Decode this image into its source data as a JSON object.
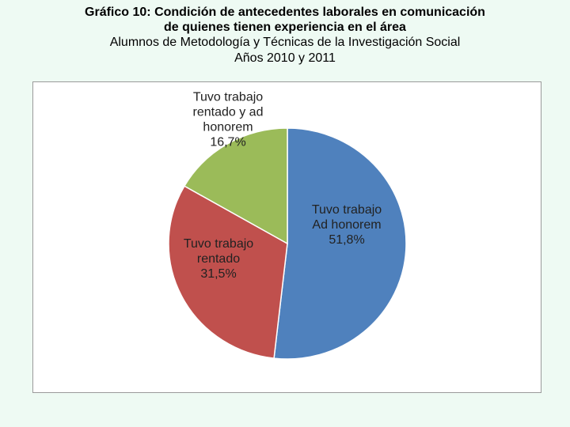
{
  "header": {
    "title_line1": "Gráfico 10: Condición de antecedentes laborales en comunicación",
    "title_line2": "de quienes tienen experiencia en el área",
    "subtitle_line1": "Alumnos de Metodología y Técnicas de la Investigación Social",
    "subtitle_line2": "Años 2010 y 2011"
  },
  "chart_data": {
    "type": "pie",
    "title": "Gráfico 10: Condición de antecedentes laborales en comunicación de quienes tienen experiencia en el área",
    "subtitle": "Alumnos de Metodología y Técnicas de la Investigación Social — Años 2010 y 2011",
    "slices": [
      {
        "label_lines": [
          "Tuvo trabajo",
          "Ad honorem"
        ],
        "pct_text": "51,8%",
        "value": 51.8,
        "color": "#4f81bd"
      },
      {
        "label_lines": [
          "Tuvo trabajo",
          "rentado"
        ],
        "pct_text": "31,5%",
        "value": 31.5,
        "color": "#c0504d"
      },
      {
        "label_lines": [
          "Tuvo trabajo",
          "rentado y ad",
          "honorem"
        ],
        "pct_text": "16,7%",
        "value": 16.7,
        "color": "#9bbb59"
      }
    ],
    "start_angle": "12 o'clock",
    "direction": "clockwise",
    "legend": "none"
  }
}
